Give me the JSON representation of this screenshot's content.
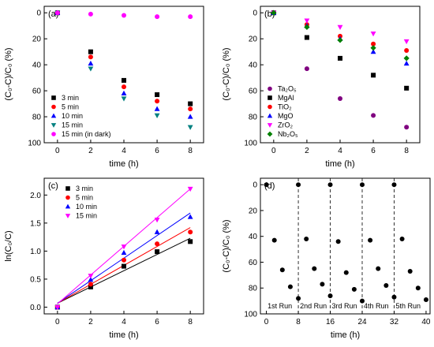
{
  "chart_data": [
    {
      "panel": "(a)",
      "type": "scatter",
      "xlabel": "time (h)",
      "ylabel": "(C₀-C)/C₀ (%)",
      "xlim": [
        -0.8,
        8.8
      ],
      "ylim": [
        100,
        -5
      ],
      "xticks": [
        0,
        2,
        4,
        6,
        8
      ],
      "yticks": [
        0,
        20,
        40,
        60,
        80,
        100
      ],
      "legend_position": "bottom-left",
      "series": [
        {
          "name": "3 min",
          "color": "#000000",
          "marker": "square",
          "x": [
            0,
            2,
            4,
            6,
            8
          ],
          "y": [
            0,
            30,
            52,
            63,
            70
          ]
        },
        {
          "name": "5 min",
          "color": "#ff0000",
          "marker": "circle",
          "x": [
            0,
            2,
            4,
            6,
            8
          ],
          "y": [
            0,
            34,
            57,
            68,
            74
          ]
        },
        {
          "name": "10 min",
          "color": "#0000ff",
          "marker": "triangle-up",
          "x": [
            0,
            2,
            4,
            6,
            8
          ],
          "y": [
            0,
            39,
            62,
            74,
            80
          ]
        },
        {
          "name": "15 min",
          "color": "#008080",
          "marker": "triangle-down",
          "x": [
            0,
            2,
            4,
            6,
            8
          ],
          "y": [
            0,
            43,
            66,
            79,
            88
          ]
        },
        {
          "name": "15 min (in dark)",
          "color": "#ff00ff",
          "marker": "circle",
          "x": [
            0,
            2,
            4,
            6,
            8
          ],
          "y": [
            0,
            1,
            2,
            3,
            3
          ]
        }
      ]
    },
    {
      "panel": "(b)",
      "type": "scatter",
      "xlabel": "time (h)",
      "ylabel": "(C₀-C)/C₀ (%)",
      "xlim": [
        -0.8,
        8.8
      ],
      "ylim": [
        100,
        -5
      ],
      "xticks": [
        0,
        2,
        4,
        6,
        8
      ],
      "yticks": [
        0,
        20,
        40,
        60,
        80,
        100
      ],
      "legend_position": "bottom-left",
      "series": [
        {
          "name": "Ta₂O₅",
          "color": "#800080",
          "marker": "circle",
          "x": [
            0,
            2,
            4,
            6,
            8
          ],
          "y": [
            0,
            43,
            66,
            79,
            88
          ]
        },
        {
          "name": "MgAl",
          "color": "#000000",
          "marker": "square",
          "x": [
            0,
            2,
            4,
            6,
            8
          ],
          "y": [
            0,
            19,
            35,
            48,
            58
          ]
        },
        {
          "name": "TiO₂",
          "color": "#ff0000",
          "marker": "circle",
          "x": [
            0,
            2,
            4,
            6,
            8
          ],
          "y": [
            0,
            9,
            18,
            24,
            29
          ]
        },
        {
          "name": "MgO",
          "color": "#0000ff",
          "marker": "triangle-up",
          "x": [
            0,
            2,
            4,
            6,
            8
          ],
          "y": [
            0,
            10,
            20,
            30,
            39
          ]
        },
        {
          "name": "ZrO₂",
          "color": "#ff00ff",
          "marker": "triangle-down",
          "x": [
            0,
            2,
            4,
            6,
            8
          ],
          "y": [
            0,
            6,
            11,
            16,
            22
          ]
        },
        {
          "name": "Nb₂O₅",
          "color": "#008000",
          "marker": "diamond",
          "x": [
            0,
            2,
            4,
            6,
            8
          ],
          "y": [
            0,
            11,
            21,
            27,
            35
          ]
        }
      ]
    },
    {
      "panel": "(c)",
      "type": "scatter",
      "xlabel": "time (h)",
      "ylabel": "ln(C₀/C)",
      "xlim": [
        -0.8,
        8.8
      ],
      "ylim": [
        -0.12,
        2.3
      ],
      "xticks": [
        0,
        2,
        4,
        6,
        8
      ],
      "yticks": [
        0.0,
        0.5,
        1.0,
        1.5,
        2.0
      ],
      "ytick_labels": [
        "0.0",
        "0.5",
        "1.0",
        "1.5",
        "2.0"
      ],
      "legend_position": "top-left",
      "series": [
        {
          "name": "3 min",
          "color": "#000000",
          "marker": "square",
          "x": [
            0,
            2,
            4,
            6,
            8
          ],
          "y": [
            0,
            0.36,
            0.73,
            0.99,
            1.17
          ],
          "fit": [
            0.07,
            1.23
          ]
        },
        {
          "name": "5 min",
          "color": "#ff0000",
          "marker": "circle",
          "x": [
            0,
            2,
            4,
            6,
            8
          ],
          "y": [
            0,
            0.41,
            0.84,
            1.13,
            1.34
          ],
          "fit": [
            0.07,
            1.42
          ]
        },
        {
          "name": "10 min",
          "color": "#0000ff",
          "marker": "triangle-up",
          "x": [
            0,
            2,
            4,
            6,
            8
          ],
          "y": [
            0,
            0.49,
            0.97,
            1.34,
            1.61
          ],
          "fit": [
            0.07,
            1.68
          ]
        },
        {
          "name": "15 min",
          "color": "#ff00ff",
          "marker": "triangle-down",
          "x": [
            0,
            2,
            4,
            6,
            8
          ],
          "y": [
            0,
            0.56,
            1.08,
            1.56,
            2.11
          ],
          "fit": [
            0.06,
            2.11
          ]
        }
      ]
    },
    {
      "panel": "(d)",
      "type": "scatter",
      "xlabel": "time (h)",
      "ylabel": "(C₀-C)/C₀ (%)",
      "xlim": [
        -1.5,
        41
      ],
      "ylim": [
        100,
        -5
      ],
      "xticks": [
        0,
        8,
        16,
        24,
        32,
        40
      ],
      "yticks": [
        0,
        20,
        40,
        60,
        80,
        100
      ],
      "run_dividers_x": [
        8,
        16,
        24,
        32
      ],
      "run_labels": [
        "1st Run",
        "2nd Run",
        "3rd Run",
        "4th Run",
        "5th Run"
      ],
      "run_label_x": [
        0.3,
        8.4,
        16.4,
        24.4,
        32.4
      ],
      "series": [
        {
          "name": "",
          "color": "#000000",
          "marker": "circle",
          "x": [
            0,
            2,
            4,
            6,
            8,
            8,
            10,
            12,
            14,
            16,
            16,
            18,
            20,
            22,
            24,
            24,
            26,
            28,
            30,
            32,
            32,
            34,
            36,
            38,
            40
          ],
          "y": [
            0,
            43,
            66,
            79,
            88,
            0,
            42,
            65,
            77,
            86,
            0,
            44,
            68,
            81,
            90,
            0,
            43,
            65,
            78,
            87,
            0,
            42,
            67,
            80,
            89
          ]
        }
      ]
    }
  ]
}
